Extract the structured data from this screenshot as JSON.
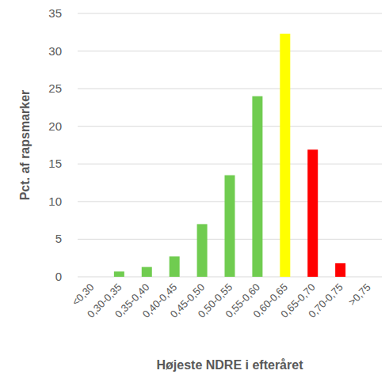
{
  "chart_data": {
    "type": "bar",
    "x_label": "Højeste NDRE i efteråret",
    "y_label": "Pct. af rapsmarker",
    "categories": [
      "<0,30",
      "0,30-0,35",
      "0,35-0,40",
      "0,40-0,45",
      "0,45-0,50",
      "0,50-0,55",
      "0,55-0,60",
      "0,60-0,65",
      "0,65-0,70",
      "0,70-0,75",
      ">0,75"
    ],
    "values": [
      0,
      0.7,
      1.3,
      2.7,
      7.0,
      13.5,
      24.0,
      32.3,
      16.9,
      1.8,
      0
    ],
    "colors": [
      "#70cc50",
      "#70cc50",
      "#70cc50",
      "#70cc50",
      "#70cc50",
      "#70cc50",
      "#70cc50",
      "#ffff00",
      "#ff0000",
      "#ff0000",
      "#ff0000"
    ],
    "ylim": [
      0,
      35
    ],
    "yticks": [
      0,
      5,
      10,
      15,
      20,
      25,
      30,
      35
    ],
    "grid": true
  }
}
